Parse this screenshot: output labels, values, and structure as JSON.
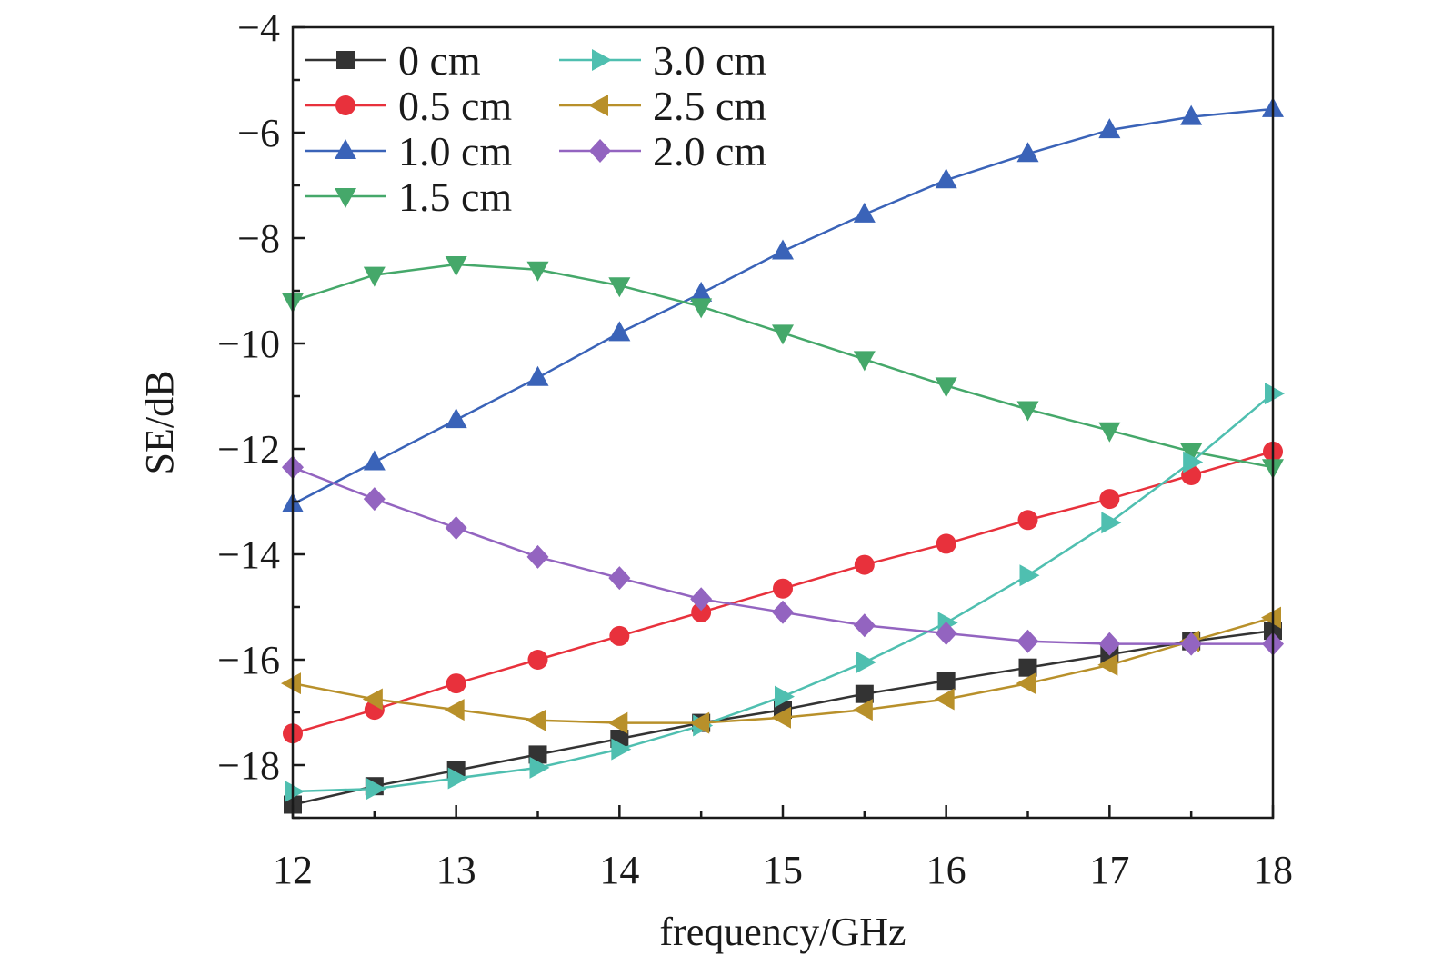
{
  "chart_data": {
    "type": "line",
    "xlabel": "frequency/GHz",
    "ylabel": "SE/dB",
    "xlim": [
      12,
      18
    ],
    "ylim": [
      -19,
      -4
    ],
    "xticks": [
      12,
      13,
      14,
      15,
      16,
      17,
      18
    ],
    "yticks": [
      -4,
      -6,
      -8,
      -10,
      -12,
      -14,
      -16,
      -18
    ],
    "ytick_labels": [
      "−4",
      "−6",
      "−8",
      "−10",
      "−12",
      "−14",
      "−16",
      "−18"
    ],
    "grid": false,
    "legend_position": "top-left",
    "x": [
      12,
      12.5,
      13,
      13.5,
      14,
      14.5,
      15,
      15.5,
      16,
      16.5,
      17,
      17.5,
      18
    ],
    "series": [
      {
        "name": "0 cm",
        "marker": "square",
        "color": "#333333",
        "values": [
          -18.75,
          -18.4,
          -18.1,
          -17.8,
          -17.5,
          -17.2,
          -16.95,
          -16.65,
          -16.4,
          -16.15,
          -15.9,
          -15.65,
          -15.45
        ]
      },
      {
        "name": "0.5 cm",
        "marker": "circle",
        "color": "#e8313c",
        "values": [
          -17.4,
          -16.95,
          -16.45,
          -16.0,
          -15.55,
          -15.1,
          -14.65,
          -14.2,
          -13.8,
          -13.35,
          -12.95,
          -12.5,
          -12.05
        ]
      },
      {
        "name": "1.0 cm",
        "marker": "triangle-up",
        "color": "#3a63b8",
        "values": [
          -13.05,
          -12.25,
          -11.45,
          -10.65,
          -9.8,
          -9.05,
          -8.25,
          -7.55,
          -6.9,
          -6.4,
          -5.95,
          -5.7,
          -5.55
        ]
      },
      {
        "name": "1.5 cm",
        "marker": "triangle-down",
        "color": "#45a86a",
        "values": [
          -9.2,
          -8.7,
          -8.5,
          -8.6,
          -8.9,
          -9.3,
          -9.8,
          -10.3,
          -10.8,
          -11.25,
          -11.65,
          -12.05,
          -12.35
        ]
      },
      {
        "name": "3.0 cm",
        "marker": "triangle-right",
        "color": "#4fbfb0",
        "values": [
          -18.5,
          -18.45,
          -18.25,
          -18.05,
          -17.7,
          -17.25,
          -16.7,
          -16.05,
          -15.3,
          -14.4,
          -13.4,
          -12.25,
          -10.95
        ]
      },
      {
        "name": "2.5 cm",
        "marker": "triangle-left",
        "color": "#b8902a",
        "values": [
          -16.45,
          -16.75,
          -16.95,
          -17.15,
          -17.2,
          -17.2,
          -17.1,
          -16.95,
          -16.75,
          -16.45,
          -16.1,
          -15.65,
          -15.2
        ]
      },
      {
        "name": "2.0 cm",
        "marker": "diamond",
        "color": "#9364c0",
        "values": [
          -12.35,
          -12.95,
          -13.5,
          -14.05,
          -14.45,
          -14.85,
          -15.1,
          -15.35,
          -15.5,
          -15.65,
          -15.7,
          -15.7,
          -15.7
        ]
      }
    ],
    "legend_columns": [
      [
        "0 cm",
        "0.5 cm",
        "1.0 cm",
        "1.5 cm"
      ],
      [
        "3.0 cm",
        "2.5 cm",
        "2.0 cm"
      ]
    ]
  }
}
